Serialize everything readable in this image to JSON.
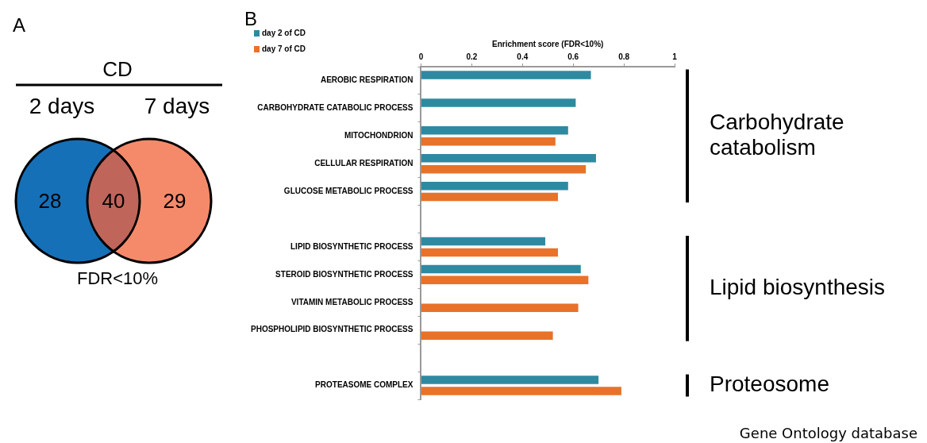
{
  "chart_data": [
    {
      "type": "other",
      "title": "A",
      "subtitle": "CD",
      "categories": [
        "2 days",
        null,
        "7 days"
      ],
      "values": [
        28,
        40,
        29
      ],
      "colors": [
        "#1570b8",
        "#c0655a",
        "#f58a6b"
      ],
      "data_labels": true,
      "annotations": [
        "FDR<10%"
      ]
    },
    {
      "type": "bar",
      "title": "B",
      "orientation": "horizontal",
      "xlabel": "Enrichment score (FDR<10%)",
      "categories": [
        "AEROBIC RESPIRATION",
        "CARBOHYDRATE CATABOLIC PROCESS",
        "MITOCHONDRION",
        "CELLULAR RESPIRATION",
        "GLUCOSE METABOLIC PROCESS",
        null,
        "LIPID BIOSYNTHETIC PROCESS",
        "STEROID BIOSYNTHETIC PROCESS",
        "VITAMIN METABOLIC PROCESS",
        "PHOSPHOLIPID BIOSYNTHETIC PROCESS",
        null,
        "PROTEASOME COMPLEX"
      ],
      "series": [
        {
          "name": "day 2 of CD",
          "color": "#2e8aa0",
          "values": [
            0.67,
            0.61,
            0.58,
            0.69,
            0.58,
            null,
            0.49,
            0.63,
            null,
            null,
            null,
            0.7
          ]
        },
        {
          "name": "day 7 of CD",
          "color": "#e8722a",
          "values": [
            null,
            null,
            0.53,
            0.65,
            0.54,
            null,
            0.54,
            0.66,
            0.62,
            0.52,
            null,
            0.79
          ]
        }
      ],
      "xlim": [
        0,
        1
      ],
      "xticks": [
        0,
        0.2,
        0.4,
        0.6,
        0.8,
        1
      ],
      "grid": false,
      "legend": "top left",
      "annotations": [
        "Carbohydrate catabolism",
        "Lipid biosynthesis",
        "Proteosome",
        "Gene Ontology database"
      ]
    }
  ]
}
